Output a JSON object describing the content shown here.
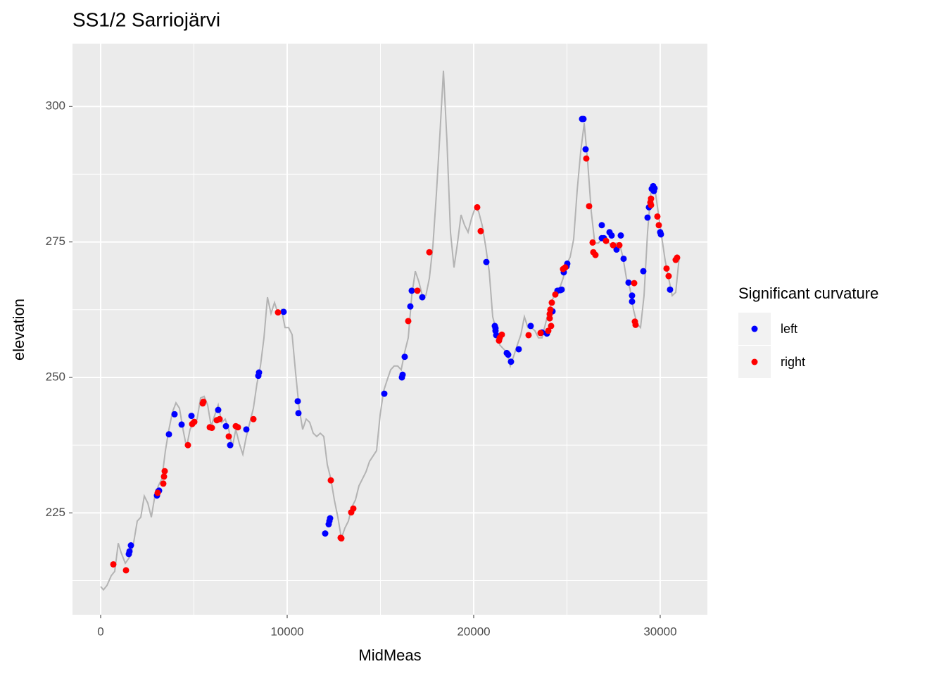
{
  "chart_data": {
    "type": "scatter",
    "title": "SS1/2 Sarriojärvi",
    "x_label": "MidMeas",
    "y_label": "elevation",
    "legend_title": "Significant curvature",
    "xlim": [
      -1510,
      32530
    ],
    "ylim": [
      206.2,
      311.6
    ],
    "xticks": [
      0,
      10000,
      20000,
      30000
    ],
    "yticks": [
      225,
      250,
      275,
      300
    ],
    "xminor": [
      5000,
      15000,
      25000
    ],
    "yminor": [
      212.5,
      237.5,
      262.5,
      287.5
    ],
    "grid": true,
    "line": {
      "color": "#b3b3b3",
      "x": [
        0,
        151,
        340,
        566,
        755,
        943,
        1094,
        1321,
        1585,
        1774,
        1962,
        2151,
        2340,
        2528,
        2717,
        2906,
        3094,
        3283,
        3472,
        3660,
        3849,
        4038,
        4226,
        4415,
        4604,
        4792,
        4981,
        5170,
        5358,
        5547,
        5736,
        5925,
        6113,
        6302,
        6491,
        6679,
        6868,
        7057,
        7245,
        7434,
        7623,
        7811,
        8000,
        8189,
        8377,
        8566,
        8755,
        8943,
        9132,
        9321,
        9509,
        9698,
        9887,
        10075,
        10264,
        10453,
        10642,
        10830,
        11019,
        11208,
        11396,
        11585,
        11774,
        11962,
        12151,
        12340,
        12528,
        12717,
        12906,
        13094,
        13283,
        13472,
        13660,
        13849,
        14038,
        14226,
        14415,
        14604,
        14792,
        14981,
        15170,
        15358,
        15547,
        15736,
        15925,
        16113,
        16302,
        16491,
        16679,
        16868,
        17057,
        17245,
        17434,
        17623,
        17811,
        18000,
        18189,
        18377,
        18566,
        18755,
        18943,
        19132,
        19321,
        19509,
        19698,
        19887,
        20075,
        20264,
        20453,
        20642,
        20830,
        21019,
        21208,
        21396,
        21585,
        21774,
        21962,
        22151,
        22340,
        22528,
        22717,
        22906,
        23094,
        23283,
        23472,
        23660,
        23849,
        24038,
        24226,
        24415,
        24604,
        24792,
        24981,
        25170,
        25358,
        25547,
        25736,
        25925,
        26113,
        26302,
        26491,
        26679,
        26868,
        27057,
        27245,
        27434,
        27623,
        27811,
        28000,
        28189,
        28377,
        28566,
        28755,
        28943,
        29132,
        29321,
        29509,
        29698,
        29887,
        30075,
        30264,
        30453,
        30642,
        30830,
        31019
      ],
      "y": [
        211.4,
        210.8,
        211.6,
        213.4,
        214.2,
        219.4,
        217.7,
        215.7,
        217.0,
        219.6,
        223.5,
        224.2,
        228.1,
        226.8,
        224.2,
        228.1,
        230.0,
        231.3,
        236.5,
        240.4,
        243.6,
        245.3,
        244.3,
        240.4,
        237.1,
        240.4,
        241.7,
        242.3,
        246.2,
        246.5,
        244.9,
        241.0,
        243.0,
        244.9,
        241.7,
        242.3,
        240.4,
        237.1,
        240.4,
        237.8,
        235.8,
        239.1,
        241.7,
        244.3,
        248.8,
        252.1,
        257.3,
        264.8,
        261.8,
        263.8,
        261.8,
        262.5,
        259.2,
        259.2,
        257.9,
        250.8,
        244.3,
        240.4,
        242.3,
        241.7,
        239.7,
        239.1,
        239.7,
        239.1,
        233.9,
        231.3,
        227.4,
        224.2,
        220.3,
        222.2,
        223.5,
        226.1,
        227.4,
        230.0,
        231.3,
        232.6,
        234.5,
        235.5,
        236.5,
        243.0,
        247.5,
        249.5,
        251.4,
        252.1,
        252.1,
        251.4,
        254.7,
        257.3,
        265.1,
        269.6,
        267.7,
        265.1,
        265.1,
        268.3,
        274.2,
        283.9,
        294.9,
        306.6,
        293.6,
        276.8,
        270.3,
        274.8,
        280.0,
        278.1,
        276.8,
        279.4,
        281.3,
        280.6,
        278.1,
        274.2,
        269.6,
        261.2,
        258.6,
        256.0,
        255.3,
        254.7,
        252.1,
        254.0,
        256.0,
        257.9,
        261.2,
        259.2,
        259.2,
        258.6,
        257.3,
        257.3,
        259.9,
        262.5,
        264.4,
        265.7,
        266.4,
        268.3,
        270.9,
        272.2,
        275.5,
        284.5,
        291.7,
        296.9,
        289.7,
        280.6,
        274.8,
        274.8,
        275.5,
        275.5,
        274.8,
        274.2,
        274.8,
        274.8,
        272.2,
        268.3,
        266.4,
        262.5,
        259.9,
        259.2,
        265.1,
        276.8,
        284.5,
        285.2,
        280.6,
        276.1,
        271.6,
        268.3,
        265.1,
        265.7,
        272.2
      ]
    },
    "series": [
      {
        "name": "left",
        "color": "#0000ff",
        "x": [
          1509,
          1547,
          1623,
          3019,
          3094,
          3132,
          3660,
          3962,
          4340,
          4868,
          6302,
          6717,
          6943,
          7811,
          8453,
          8491,
          9811,
          10566,
          10604,
          12038,
          12226,
          12264,
          12302,
          15208,
          16151,
          16189,
          16302,
          16604,
          16679,
          17245,
          20679,
          21132,
          21170,
          21170,
          21208,
          21774,
          21849,
          22000,
          22415,
          23057,
          23660,
          23925,
          24189,
          24226,
          24491,
          24642,
          24717,
          24830,
          24981,
          25019,
          25811,
          25887,
          26000,
          26868,
          26868,
          26981,
          27283,
          27396,
          27660,
          27887,
          28038,
          28302,
          28491,
          28491,
          29094,
          29321,
          29396,
          29547,
          29623,
          29660,
          29698,
          30000,
          30038,
          30528
        ],
        "values": [
          217.4,
          217.9,
          219.0,
          228.2,
          229.0,
          229.1,
          239.5,
          243.2,
          241.3,
          242.9,
          244.0,
          241.0,
          237.5,
          240.4,
          250.3,
          250.9,
          262.1,
          245.6,
          243.4,
          221.2,
          222.9,
          223.5,
          224.0,
          247.0,
          250.0,
          250.5,
          253.8,
          263.1,
          266.0,
          264.8,
          271.3,
          259.5,
          259.1,
          258.6,
          257.8,
          254.5,
          254.2,
          252.9,
          255.2,
          259.5,
          258.3,
          258.1,
          262.2,
          262.2,
          266.0,
          266.1,
          266.2,
          269.4,
          270.5,
          271.0,
          297.7,
          297.7,
          292.1,
          278.1,
          275.7,
          275.7,
          276.8,
          276.2,
          273.6,
          276.2,
          271.9,
          267.5,
          265.1,
          264.0,
          269.6,
          279.5,
          281.4,
          284.8,
          285.3,
          284.4,
          284.9,
          276.8,
          276.4,
          266.2
        ]
      },
      {
        "name": "right",
        "color": "#ff0000",
        "x": [
          679,
          1358,
          3057,
          3358,
          3396,
          3434,
          4679,
          4906,
          5019,
          5472,
          5509,
          5849,
          5962,
          6226,
          6377,
          6868,
          7245,
          7358,
          8189,
          9509,
          12340,
          12868,
          12906,
          13434,
          13547,
          16491,
          16981,
          17623,
          20189,
          20377,
          21358,
          21396,
          21509,
          22943,
          23585,
          24000,
          24075,
          24075,
          24113,
          24189,
          24151,
          24377,
          24792,
          24906,
          26038,
          26189,
          26377,
          26415,
          26528,
          27094,
          27472,
          27811,
          28604,
          28642,
          28679,
          29509,
          29509,
          29472,
          29849,
          29925,
          30340,
          30453,
          30830,
          30906
        ],
        "values": [
          215.5,
          214.4,
          228.7,
          230.4,
          231.7,
          232.7,
          237.5,
          241.4,
          241.8,
          245.2,
          245.5,
          240.8,
          240.7,
          242.1,
          242.3,
          239.1,
          241.0,
          240.8,
          242.3,
          262.0,
          231.0,
          220.4,
          220.3,
          225.1,
          225.8,
          260.4,
          266.0,
          273.1,
          281.4,
          277.0,
          256.8,
          257.3,
          257.9,
          257.8,
          258.2,
          258.6,
          260.9,
          261.7,
          262.5,
          263.8,
          259.5,
          265.3,
          270.0,
          270.3,
          290.4,
          281.6,
          274.9,
          273.1,
          272.6,
          275.2,
          274.4,
          274.4,
          267.4,
          260.3,
          259.7,
          281.8,
          283.0,
          282.3,
          279.7,
          278.1,
          270.1,
          268.7,
          271.7,
          272.1
        ]
      }
    ]
  }
}
